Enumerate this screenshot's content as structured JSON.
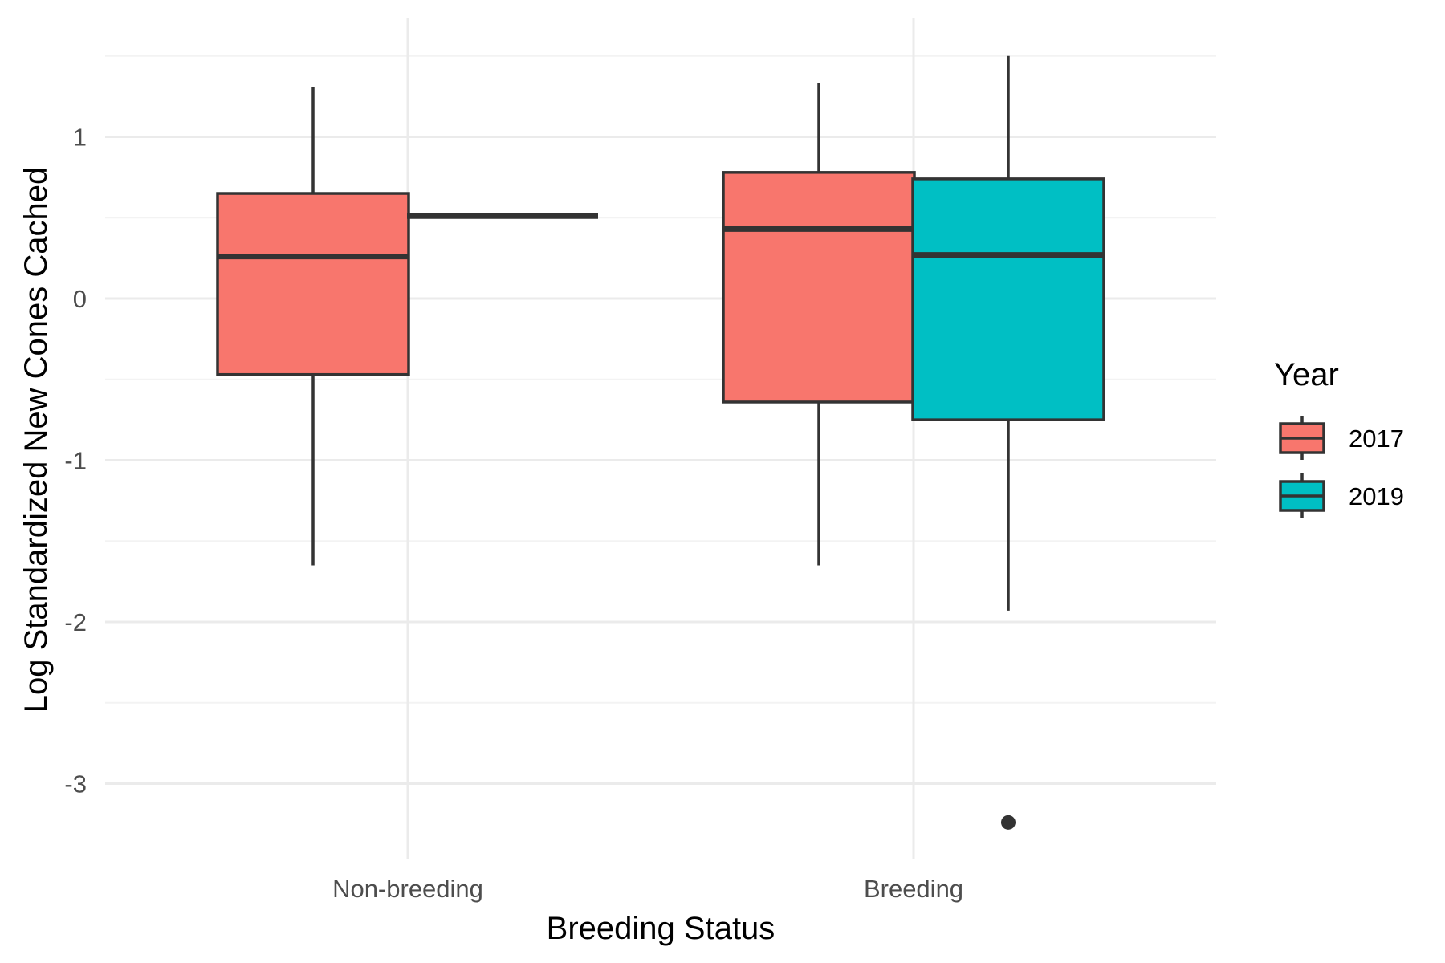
{
  "chart_data": {
    "type": "boxplot",
    "xlabel": "Breeding Status",
    "ylabel": "Log Standardized New Cones Cached",
    "ylim": [
      -3.45,
      1.75
    ],
    "yticks": [
      1,
      0,
      -1,
      -2,
      -3
    ],
    "ytick_labels": [
      "1",
      "0",
      "-1",
      "-2",
      "-3"
    ],
    "categories": [
      "Non-breeding",
      "Breeding"
    ],
    "legend": {
      "title": "Year",
      "position": "right",
      "items": [
        {
          "label": "2017",
          "color": "#F8766D"
        },
        {
          "label": "2019",
          "color": "#00BFC4"
        }
      ]
    },
    "grid": true,
    "series": [
      {
        "name": "2017",
        "color": "#F8766D",
        "boxes": [
          {
            "category": "Non-breeding",
            "lower_whisker": -1.65,
            "q1": -0.47,
            "median": 0.26,
            "q3": 0.65,
            "upper_whisker": 1.31,
            "outliers": []
          },
          {
            "category": "Breeding",
            "lower_whisker": -1.65,
            "q1": -0.64,
            "median": 0.43,
            "q3": 0.78,
            "upper_whisker": 1.33,
            "outliers": []
          }
        ]
      },
      {
        "name": "2019",
        "color": "#00BFC4",
        "boxes": [
          {
            "category": "Non-breeding",
            "lower_whisker": 0.51,
            "q1": 0.51,
            "median": 0.51,
            "q3": 0.51,
            "upper_whisker": 0.51,
            "outliers": []
          },
          {
            "category": "Breeding",
            "lower_whisker": -1.93,
            "q1": -0.75,
            "median": 0.27,
            "q3": 0.74,
            "upper_whisker": 1.5,
            "outliers": [
              -3.24
            ]
          }
        ]
      }
    ]
  }
}
